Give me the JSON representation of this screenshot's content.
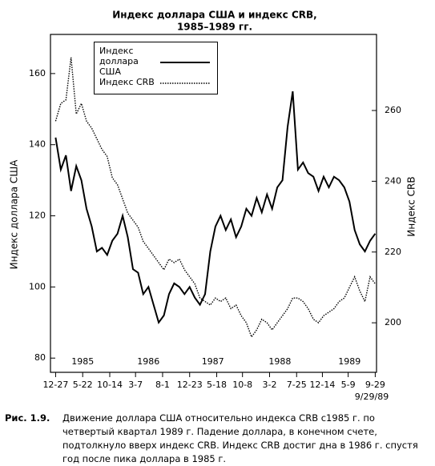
{
  "chart_data": {
    "type": "line",
    "title": [
      "Индекс доллара США и индекс CRB,",
      "1985–1989 гг."
    ],
    "y_label": "Индекс доллара США",
    "y2_label": "Индекс CRB",
    "x": [
      0,
      4,
      8,
      12,
      16,
      20,
      24,
      28,
      32,
      36,
      40,
      44,
      48,
      52,
      56,
      60,
      64,
      68,
      72,
      76,
      80,
      84,
      88,
      92,
      96,
      100,
      104,
      108,
      112,
      116,
      120,
      124,
      128,
      132,
      136,
      140,
      144,
      148,
      152,
      156,
      160,
      164,
      168,
      172,
      176,
      180,
      184,
      188,
      192,
      196,
      200,
      204,
      208,
      212,
      216,
      220,
      224,
      228,
      232,
      236,
      240,
      244,
      248
    ],
    "series": [
      {
        "name": "Индекс доллара США",
        "color": "#000000",
        "style": "solid",
        "values": [
          142,
          133,
          137,
          127,
          134,
          130,
          122,
          117,
          110,
          111,
          109,
          113,
          115,
          120,
          114,
          105,
          104,
          98,
          100,
          95,
          90,
          92,
          98,
          101,
          100,
          98,
          100,
          97,
          95,
          98,
          110,
          117,
          120,
          116,
          119,
          114,
          117,
          122,
          120,
          125,
          121,
          126,
          122,
          128,
          130,
          145,
          155,
          133,
          135,
          132,
          131,
          127,
          131,
          128,
          131,
          130,
          128,
          124,
          116,
          112,
          110,
          113,
          115
        ]
      },
      {
        "name": "Индекс CRB",
        "color": "#000000",
        "style": "dotted",
        "axis": "y2",
        "values": [
          257,
          262,
          263,
          275,
          259,
          262,
          257,
          255,
          252,
          249,
          247,
          241,
          239,
          235,
          231,
          229,
          227,
          223,
          221,
          219,
          217,
          215,
          218,
          217,
          218,
          215,
          213,
          211,
          207,
          206,
          205,
          207,
          206,
          207,
          204,
          205,
          202,
          200,
          196,
          198,
          201,
          200,
          198,
          200,
          202,
          204,
          207,
          207,
          206,
          204,
          201,
          200,
          202,
          203,
          204,
          206,
          207,
          210,
          213,
          209,
          206,
          213,
          211
        ]
      }
    ],
    "xlim": [
      -4,
      249
    ],
    "xticks": [
      {
        "value": 0,
        "label": "12-27"
      },
      {
        "value": 21,
        "label": "5-22"
      },
      {
        "value": 42,
        "label": "10-14"
      },
      {
        "value": 62,
        "label": "3-7"
      },
      {
        "value": 83,
        "label": "8-1"
      },
      {
        "value": 104,
        "label": "12-23"
      },
      {
        "value": 125,
        "label": "5-18"
      },
      {
        "value": 145,
        "label": "10-8"
      },
      {
        "value": 166,
        "label": "3-2"
      },
      {
        "value": 187,
        "label": "7-25"
      },
      {
        "value": 207,
        "label": "12-14"
      },
      {
        "value": 227,
        "label": "5-9"
      },
      {
        "value": 248,
        "label": "9-29"
      }
    ],
    "year_labels": [
      {
        "x": 21,
        "label": "1985"
      },
      {
        "x": 72,
        "label": "1986"
      },
      {
        "x": 122,
        "label": "1987"
      },
      {
        "x": 174,
        "label": "1988"
      },
      {
        "x": 228,
        "label": "1989"
      }
    ],
    "end_date": "9/29/89",
    "ylim": [
      76,
      171
    ],
    "yticks": [
      80,
      100,
      120,
      140,
      160
    ],
    "y2lim": [
      186,
      281.5
    ],
    "y2ticks": [
      200,
      220,
      240,
      260
    ],
    "grid": false
  },
  "caption": {
    "label": "Рис. 1.9.",
    "text": "Движение доллара США относительно индекса CRB с1985 г. по четвертый квартал 1989 г. Падение доллара, в конечном счете, подтолкнуло вверх индекс CRB. Индекс CRB достиг дна в 1986 г. спустя год после пика доллара в 1985 г."
  }
}
